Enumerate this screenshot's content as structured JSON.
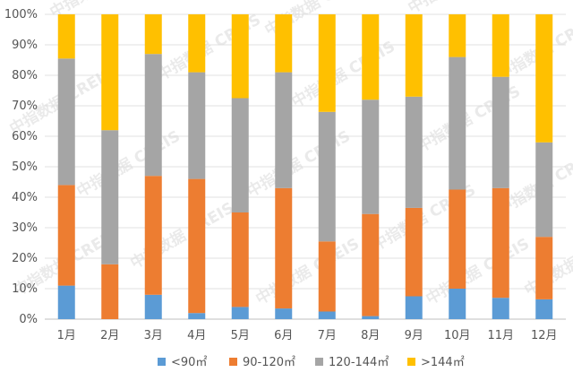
{
  "chart_data": {
    "type": "bar",
    "stacked": true,
    "percent": true,
    "categories": [
      "1月",
      "2月",
      "3月",
      "4月",
      "5月",
      "6月",
      "7月",
      "8月",
      "9月",
      "10月",
      "11月",
      "12月"
    ],
    "series": [
      {
        "name": "<90㎡",
        "color": "#5b9bd5",
        "values": [
          11,
          0,
          8,
          2,
          4,
          3.5,
          2.5,
          1,
          7.5,
          10,
          7,
          6.5
        ]
      },
      {
        "name": "90-120㎡",
        "color": "#ed7d31",
        "values": [
          33,
          18,
          39,
          44,
          31,
          39.5,
          23,
          33.5,
          29,
          32.5,
          36,
          20.5
        ]
      },
      {
        "name": "120-144㎡",
        "color": "#a5a5a5",
        "values": [
          41.5,
          44,
          40,
          35,
          37.5,
          38,
          42.5,
          37.5,
          36.5,
          43.5,
          36.5,
          31
        ]
      },
      {
        "name": ">144㎡",
        "color": "#ffc000",
        "values": [
          14.5,
          38,
          13,
          19,
          27.5,
          19,
          32,
          28,
          27,
          14,
          20.5,
          42
        ]
      }
    ],
    "y_ticks": [
      "0%",
      "10%",
      "20%",
      "30%",
      "40%",
      "50%",
      "60%",
      "70%",
      "80%",
      "90%",
      "100%"
    ],
    "ylim": [
      0,
      100
    ],
    "grid": true,
    "legend_position": "bottom"
  },
  "watermark": {
    "text": "中指数据 CREIS"
  }
}
